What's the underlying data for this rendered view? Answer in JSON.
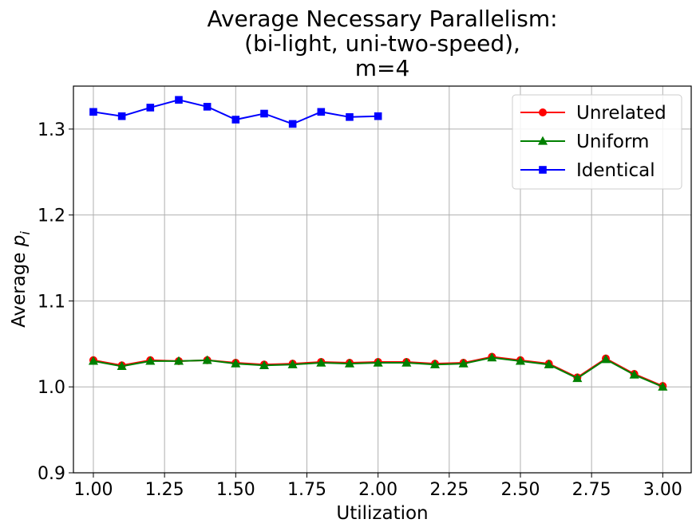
{
  "chart_data": {
    "type": "line",
    "title": [
      "Average Necessary Parallelism:",
      "(bi-light, uni-two-speed),",
      "m=4"
    ],
    "xlabel": "Utilization",
    "ylabel_main": "Average ",
    "ylabel_var": "p",
    "ylabel_sub": "i",
    "xlim": [
      0.93,
      3.1
    ],
    "ylim": [
      0.9,
      1.35
    ],
    "xticks": [
      1.0,
      1.25,
      1.5,
      1.75,
      2.0,
      2.25,
      2.5,
      2.75,
      3.0
    ],
    "xtick_labels": [
      "1.00",
      "1.25",
      "1.50",
      "1.75",
      "2.00",
      "2.25",
      "2.50",
      "2.75",
      "3.00"
    ],
    "yticks": [
      0.9,
      1.0,
      1.1,
      1.2,
      1.3
    ],
    "ytick_labels": [
      "0.9",
      "1.0",
      "1.1",
      "1.2",
      "1.3"
    ],
    "grid": true,
    "legend_position": "top-right",
    "series": [
      {
        "name": "Unrelated",
        "color": "#ff0000",
        "marker": "circle",
        "x": [
          1.0,
          1.1,
          1.2,
          1.3,
          1.4,
          1.5,
          1.6,
          1.7,
          1.8,
          1.9,
          2.0,
          2.1,
          2.2,
          2.3,
          2.4,
          2.5,
          2.6,
          2.7,
          2.8,
          2.9,
          3.0
        ],
        "y": [
          1.031,
          1.025,
          1.031,
          1.03,
          1.031,
          1.028,
          1.026,
          1.027,
          1.029,
          1.028,
          1.029,
          1.029,
          1.027,
          1.028,
          1.035,
          1.031,
          1.027,
          1.011,
          1.033,
          1.015,
          1.001
        ]
      },
      {
        "name": "Uniform",
        "color": "#008000",
        "marker": "triangle",
        "x": [
          1.0,
          1.1,
          1.2,
          1.3,
          1.4,
          1.5,
          1.6,
          1.7,
          1.8,
          1.9,
          2.0,
          2.1,
          2.2,
          2.3,
          2.4,
          2.5,
          2.6,
          2.7,
          2.8,
          2.9,
          3.0
        ],
        "y": [
          1.03,
          1.024,
          1.03,
          1.03,
          1.031,
          1.027,
          1.025,
          1.026,
          1.028,
          1.027,
          1.028,
          1.028,
          1.026,
          1.027,
          1.034,
          1.03,
          1.026,
          1.01,
          1.032,
          1.014,
          1.0
        ]
      },
      {
        "name": "Identical",
        "color": "#0000ff",
        "marker": "square",
        "x": [
          1.0,
          1.1,
          1.2,
          1.3,
          1.4,
          1.5,
          1.6,
          1.7,
          1.8,
          1.9,
          2.0
        ],
        "y": [
          1.32,
          1.315,
          1.325,
          1.334,
          1.326,
          1.311,
          1.318,
          1.306,
          1.32,
          1.314,
          1.315
        ]
      }
    ]
  }
}
